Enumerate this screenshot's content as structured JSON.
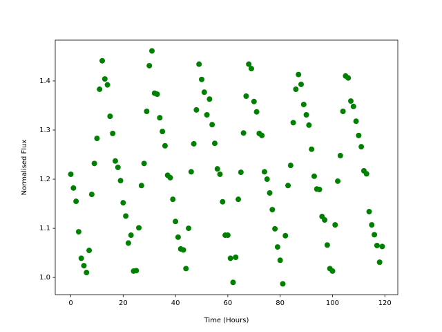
{
  "chart_data": {
    "type": "scatter",
    "x_label": "Time (Hours)",
    "y_label": "Normalised Flux",
    "color": "#008000",
    "x": [
      0,
      1,
      2,
      3,
      4,
      5,
      6,
      7,
      8,
      9,
      10,
      11,
      12,
      13,
      14,
      15,
      16,
      17,
      18,
      19,
      20,
      21,
      22,
      23,
      24,
      25,
      26,
      27,
      28,
      29,
      30,
      31,
      32,
      33,
      34,
      35,
      36,
      37,
      38,
      39,
      40,
      41,
      42,
      43,
      44,
      45,
      46,
      47,
      48,
      49,
      50,
      51,
      52,
      53,
      54,
      55,
      56,
      57,
      58,
      59,
      60,
      61,
      62,
      63,
      64,
      65,
      66,
      67,
      68,
      69,
      70,
      71,
      72,
      73,
      74,
      75,
      76,
      77,
      78,
      79,
      80,
      81,
      82,
      83,
      84,
      85,
      86,
      87,
      88,
      89,
      90,
      91,
      92,
      93,
      94,
      95,
      96,
      97,
      98,
      99,
      100,
      101,
      102,
      103,
      104,
      105,
      106,
      107,
      108,
      109,
      110,
      111,
      112,
      113,
      114,
      115,
      116,
      117,
      118,
      119
    ],
    "values": [
      1.21,
      1.182,
      1.155,
      1.093,
      1.039,
      1.024,
      1.01,
      1.055,
      1.169,
      1.232,
      1.283,
      1.383,
      1.441,
      1.404,
      1.392,
      1.328,
      1.293,
      1.237,
      1.224,
      1.197,
      1.152,
      1.125,
      1.07,
      1.086,
      1.013,
      1.014,
      1.101,
      1.187,
      1.232,
      1.338,
      1.431,
      1.461,
      1.375,
      1.373,
      1.325,
      1.297,
      1.268,
      1.208,
      1.203,
      1.159,
      1.114,
      1.082,
      1.058,
      1.056,
      1.018,
      1.1,
      1.215,
      1.272,
      1.341,
      1.434,
      1.403,
      1.377,
      1.331,
      1.363,
      1.311,
      1.273,
      1.221,
      1.21,
      1.154,
      1.086,
      1.086,
      1.039,
      0.99,
      1.041,
      1.159,
      1.214,
      1.294,
      1.369,
      1.434,
      1.425,
      1.358,
      1.337,
      1.293,
      1.289,
      1.215,
      1.2,
      1.172,
      1.138,
      1.099,
      1.062,
      1.035,
      0.987,
      1.085,
      1.187,
      1.228,
      1.315,
      1.383,
      1.413,
      1.393,
      1.352,
      1.331,
      1.31,
      1.261,
      1.206,
      1.18,
      1.179,
      1.124,
      1.117,
      1.066,
      1.018,
      1.013,
      1.107,
      1.196,
      1.248,
      1.338,
      1.41,
      1.406,
      1.359,
      1.348,
      1.318,
      1.289,
      1.266,
      1.217,
      1.211,
      1.134,
      1.107,
      1.087,
      1.065,
      1.031,
      1.063
    ],
    "xlim": [
      -5.95,
      124.95
    ],
    "xticks": [
      0,
      20,
      40,
      60,
      80,
      100,
      120
    ],
    "ylim": [
      0.965,
      1.483
    ],
    "yticks": [
      {
        "value": 1,
        "label": "1.0"
      },
      1.1,
      1.2,
      1.3,
      1.4
    ]
  }
}
